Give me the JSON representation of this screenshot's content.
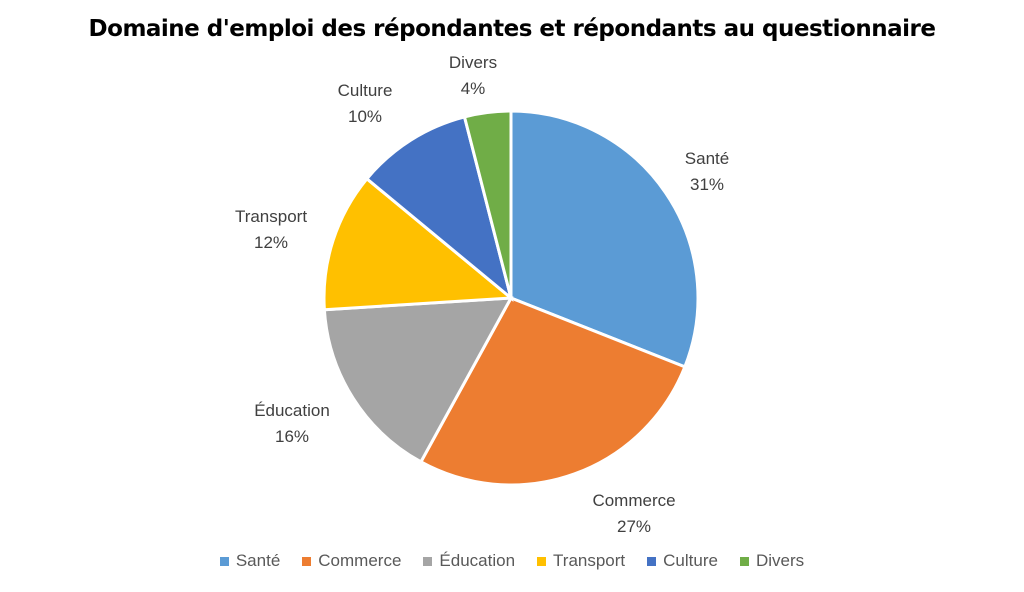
{
  "chart_data": {
    "type": "pie",
    "title": "Domaine d'emploi des répondantes et répondants au questionnaire",
    "categories": [
      "Santé",
      "Commerce",
      "Éducation",
      "Transport",
      "Culture",
      "Divers"
    ],
    "values": [
      31,
      27,
      16,
      12,
      10,
      4
    ],
    "value_labels": [
      "31%",
      "27%",
      "16%",
      "12%",
      "10%",
      "4%"
    ],
    "colors": [
      "#5B9BD5",
      "#ED7D31",
      "#A5A5A5",
      "#FFC000",
      "#4472C4",
      "#70AD47"
    ],
    "legend_placement": "bottom"
  }
}
